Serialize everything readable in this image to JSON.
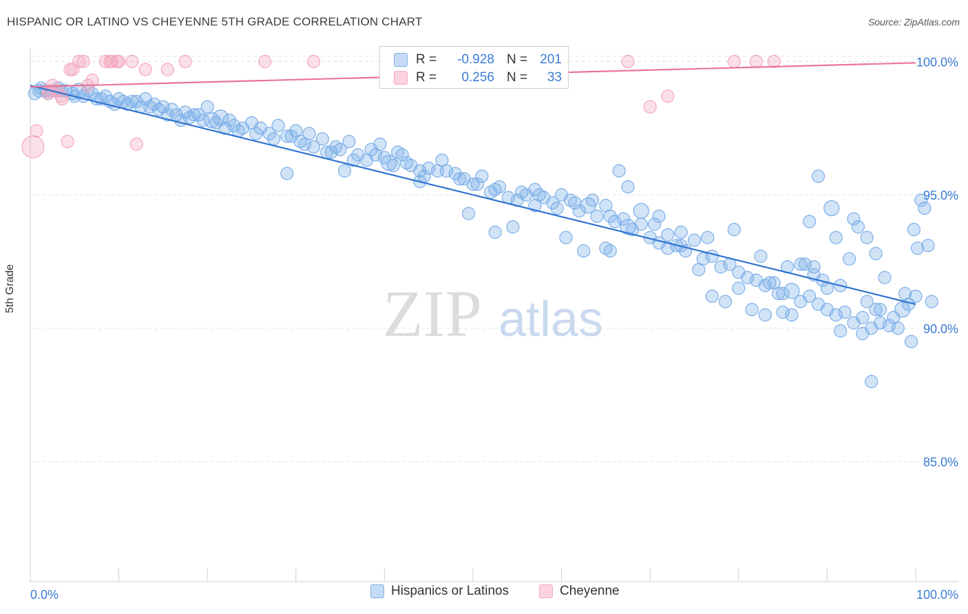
{
  "header": {
    "title": "HISPANIC OR LATINO VS CHEYENNE 5TH GRADE CORRELATION CHART",
    "source": "Source: ZipAtlas.com"
  },
  "watermark": {
    "zip": "ZIP",
    "atlas": "atlas"
  },
  "stats": {
    "rows": [
      {
        "r_label": "R =",
        "r_value": "-0.928",
        "n_label": "N =",
        "n_value": "201",
        "color": "#7baee8"
      },
      {
        "r_label": "R =",
        "r_value": "0.256",
        "n_label": "N =",
        "n_value": "33",
        "color": "#f4a7bd"
      }
    ]
  },
  "legend": {
    "items": [
      {
        "label": "Hispanics or Latinos",
        "color": "#7baee8"
      },
      {
        "label": "Cheyenne",
        "color": "#f4a7bd"
      }
    ]
  },
  "chart_data": {
    "type": "scatter",
    "title": "HISPANIC OR LATINO VS CHEYENNE 5TH GRADE CORRELATION CHART",
    "xlabel": "",
    "ylabel": "5th Grade",
    "xlim": [
      0,
      100
    ],
    "ylim": [
      80.5,
      100.5
    ],
    "x_tick_labels": [
      "0.0%",
      "100.0%"
    ],
    "y_ticks": [
      85,
      90,
      95,
      100
    ],
    "y_tick_labels": [
      "85.0%",
      "90.0%",
      "95.0%",
      "100.0%"
    ],
    "grid": true,
    "legend_position": "bottom",
    "series": [
      {
        "name": "Hispanics or Latinos",
        "color": "#7baee8",
        "line_color": "#2f73d1",
        "trend": {
          "x": [
            0,
            100
          ],
          "y": [
            99.1,
            90.9
          ]
        },
        "points": [
          [
            0.5,
            98.8
          ],
          [
            1.2,
            99.0
          ],
          [
            1.8,
            98.9
          ],
          [
            2.5,
            98.9
          ],
          [
            3.2,
            99.0
          ],
          [
            4.0,
            98.9
          ],
          [
            4.8,
            98.8
          ],
          [
            5.5,
            98.9
          ],
          [
            6.0,
            98.7
          ],
          [
            7.0,
            98.8
          ],
          [
            7.5,
            98.6
          ],
          [
            8.5,
            98.7
          ],
          [
            9.0,
            98.5
          ],
          [
            10.0,
            98.6
          ],
          [
            10.5,
            98.5
          ],
          [
            11.0,
            98.4
          ],
          [
            12.0,
            98.5
          ],
          [
            12.5,
            98.3
          ],
          [
            13.0,
            98.6
          ],
          [
            14.0,
            98.4
          ],
          [
            14.5,
            98.2
          ],
          [
            15.0,
            98.3
          ],
          [
            16.0,
            98.2
          ],
          [
            16.5,
            98.0
          ],
          [
            17.5,
            98.1
          ],
          [
            18.0,
            97.9
          ],
          [
            19.0,
            98.0
          ],
          [
            19.5,
            97.8
          ],
          [
            20.0,
            98.3
          ],
          [
            21.0,
            97.7
          ],
          [
            21.5,
            97.9
          ],
          [
            22.5,
            97.8
          ],
          [
            23.0,
            97.6
          ],
          [
            24.0,
            97.5
          ],
          [
            25.0,
            97.7
          ],
          [
            26.0,
            97.5
          ],
          [
            27.0,
            97.3
          ],
          [
            28.0,
            97.6
          ],
          [
            29.0,
            97.2
          ],
          [
            30.0,
            97.4
          ],
          [
            30.5,
            97.0
          ],
          [
            31.5,
            97.3
          ],
          [
            32.0,
            96.8
          ],
          [
            33.0,
            97.1
          ],
          [
            33.5,
            96.6
          ],
          [
            34.5,
            96.8
          ],
          [
            35.0,
            96.7
          ],
          [
            36.0,
            97.0
          ],
          [
            37.0,
            96.5
          ],
          [
            38.0,
            96.3
          ],
          [
            38.5,
            96.7
          ],
          [
            39.5,
            96.9
          ],
          [
            40.0,
            96.4
          ],
          [
            40.5,
            96.2
          ],
          [
            41.5,
            96.6
          ],
          [
            42.5,
            96.2
          ],
          [
            43.0,
            96.1
          ],
          [
            44.0,
            95.9
          ],
          [
            45.0,
            96.0
          ],
          [
            46.5,
            96.3
          ],
          [
            47.0,
            95.9
          ],
          [
            48.0,
            95.8
          ],
          [
            49.0,
            95.6
          ],
          [
            50.0,
            95.4
          ],
          [
            51.0,
            95.7
          ],
          [
            52.0,
            95.1
          ],
          [
            53.0,
            95.3
          ],
          [
            54.0,
            94.9
          ],
          [
            55.0,
            94.8
          ],
          [
            56.0,
            95.0
          ],
          [
            57.0,
            94.6
          ],
          [
            58.0,
            94.9
          ],
          [
            59.0,
            94.7
          ],
          [
            60.0,
            95.0
          ],
          [
            61.0,
            94.8
          ],
          [
            62.0,
            94.4
          ],
          [
            63.0,
            94.6
          ],
          [
            64.0,
            94.2
          ],
          [
            65.0,
            94.6
          ],
          [
            66.0,
            94.0
          ],
          [
            67.0,
            94.1
          ],
          [
            68.0,
            93.7
          ],
          [
            69.0,
            93.9
          ],
          [
            70.0,
            93.4
          ],
          [
            71.0,
            93.2
          ],
          [
            72.0,
            93.5
          ],
          [
            73.0,
            93.1
          ],
          [
            74.0,
            92.9
          ],
          [
            75.0,
            93.3
          ],
          [
            76.0,
            92.6
          ],
          [
            77.0,
            92.7
          ],
          [
            78.0,
            92.3
          ],
          [
            79.0,
            92.4
          ],
          [
            80.0,
            92.1
          ],
          [
            81.0,
            91.9
          ],
          [
            82.0,
            91.8
          ],
          [
            83.0,
            91.6
          ],
          [
            84.0,
            91.7
          ],
          [
            85.0,
            91.3
          ],
          [
            86.0,
            91.4
          ],
          [
            87.0,
            91.0
          ],
          [
            88.0,
            91.2
          ],
          [
            89.0,
            90.9
          ],
          [
            90.0,
            90.7
          ],
          [
            91.0,
            90.5
          ],
          [
            92.0,
            90.6
          ],
          [
            93.0,
            90.2
          ],
          [
            94.0,
            90.4
          ],
          [
            95.0,
            90.0
          ],
          [
            96.0,
            90.2
          ],
          [
            1.0,
            98.9
          ],
          [
            2.0,
            98.8
          ],
          [
            3.5,
            98.9
          ],
          [
            5.0,
            98.7
          ],
          [
            6.5,
            98.9
          ],
          [
            8.0,
            98.6
          ],
          [
            9.5,
            98.4
          ],
          [
            11.5,
            98.5
          ],
          [
            13.5,
            98.3
          ],
          [
            15.5,
            98.0
          ],
          [
            17.0,
            97.8
          ],
          [
            18.5,
            98.0
          ],
          [
            20.5,
            97.8
          ],
          [
            22.0,
            97.5
          ],
          [
            23.5,
            97.4
          ],
          [
            25.5,
            97.3
          ],
          [
            27.5,
            97.1
          ],
          [
            29.5,
            97.2
          ],
          [
            31.0,
            96.9
          ],
          [
            34.0,
            96.6
          ],
          [
            36.5,
            96.3
          ],
          [
            39.0,
            96.5
          ],
          [
            41.0,
            96.1
          ],
          [
            42.0,
            96.5
          ],
          [
            44.5,
            95.7
          ],
          [
            46.0,
            95.9
          ],
          [
            48.5,
            95.6
          ],
          [
            50.5,
            95.4
          ],
          [
            52.5,
            95.2
          ],
          [
            55.5,
            95.1
          ],
          [
            57.5,
            95.0
          ],
          [
            59.5,
            94.5
          ],
          [
            61.5,
            94.7
          ],
          [
            63.5,
            94.8
          ],
          [
            65.5,
            94.2
          ],
          [
            67.5,
            93.8
          ],
          [
            70.5,
            93.9
          ],
          [
            73.5,
            93.6
          ],
          [
            76.5,
            93.4
          ],
          [
            79.5,
            93.7
          ],
          [
            82.5,
            92.7
          ],
          [
            85.5,
            92.3
          ],
          [
            88.5,
            92.0
          ],
          [
            91.5,
            91.6
          ],
          [
            94.5,
            91.0
          ],
          [
            29.0,
            95.8
          ],
          [
            35.5,
            95.9
          ],
          [
            44.0,
            95.5
          ],
          [
            49.5,
            94.3
          ],
          [
            52.5,
            93.6
          ],
          [
            54.5,
            93.8
          ],
          [
            57.0,
            95.2
          ],
          [
            60.5,
            93.4
          ],
          [
            62.5,
            92.9
          ],
          [
            65.0,
            93.0
          ],
          [
            65.5,
            92.9
          ],
          [
            66.5,
            95.9
          ],
          [
            67.5,
            95.3
          ],
          [
            69.0,
            94.4
          ],
          [
            71.0,
            94.2
          ],
          [
            72.0,
            93.0
          ],
          [
            73.5,
            93.1
          ],
          [
            75.5,
            92.2
          ],
          [
            77.0,
            91.2
          ],
          [
            78.5,
            91.0
          ],
          [
            80.0,
            91.5
          ],
          [
            81.5,
            90.7
          ],
          [
            83.0,
            90.5
          ],
          [
            84.5,
            91.3
          ],
          [
            86.0,
            90.5
          ],
          [
            87.5,
            92.4
          ],
          [
            88.5,
            92.3
          ],
          [
            90.0,
            91.5
          ],
          [
            91.0,
            93.4
          ],
          [
            93.0,
            94.1
          ],
          [
            93.5,
            93.8
          ],
          [
            94.5,
            93.4
          ],
          [
            95.5,
            92.8
          ],
          [
            96.5,
            91.9
          ],
          [
            97.5,
            90.4
          ],
          [
            98.0,
            90.0
          ],
          [
            98.5,
            90.7
          ],
          [
            99.5,
            89.5
          ],
          [
            100.0,
            91.2
          ],
          [
            98.8,
            91.3
          ],
          [
            99.2,
            90.9
          ],
          [
            99.8,
            93.7
          ],
          [
            100.2,
            93.0
          ],
          [
            100.6,
            94.8
          ],
          [
            101.0,
            94.5
          ],
          [
            101.4,
            93.1
          ],
          [
            101.8,
            91.0
          ],
          [
            83.5,
            91.7
          ],
          [
            85.0,
            90.6
          ],
          [
            87.0,
            92.4
          ],
          [
            89.5,
            91.8
          ],
          [
            91.5,
            89.9
          ],
          [
            92.5,
            92.6
          ],
          [
            94.0,
            89.8
          ],
          [
            95.5,
            90.7
          ],
          [
            97.0,
            90.1
          ],
          [
            95.0,
            88.0
          ],
          [
            88.0,
            94.0
          ],
          [
            89.0,
            95.7
          ],
          [
            90.5,
            94.5
          ],
          [
            96.0,
            90.7
          ]
        ]
      },
      {
        "name": "Cheyenne",
        "color": "#f4a7bd",
        "line_color": "#e8749a",
        "trend": {
          "x": [
            0,
            100
          ],
          "y": [
            99.05,
            99.95
          ]
        },
        "points": [
          [
            0.3,
            96.8
          ],
          [
            0.7,
            97.4
          ],
          [
            2.0,
            98.8
          ],
          [
            2.2,
            98.9
          ],
          [
            2.5,
            99.1
          ],
          [
            3.0,
            98.9
          ],
          [
            3.5,
            98.7
          ],
          [
            3.6,
            98.6
          ],
          [
            4.2,
            97.0
          ],
          [
            4.5,
            99.7
          ],
          [
            4.8,
            99.7
          ],
          [
            5.5,
            100.0
          ],
          [
            6.0,
            100.0
          ],
          [
            6.5,
            99.1
          ],
          [
            7.0,
            99.3
          ],
          [
            8.5,
            100.0
          ],
          [
            9.0,
            100.0
          ],
          [
            9.2,
            100.0
          ],
          [
            9.8,
            100.0
          ],
          [
            10.0,
            100.0
          ],
          [
            11.5,
            100.0
          ],
          [
            12.0,
            96.9
          ],
          [
            13.0,
            99.7
          ],
          [
            15.5,
            99.7
          ],
          [
            17.5,
            100.0
          ],
          [
            26.5,
            100.0
          ],
          [
            32.0,
            100.0
          ],
          [
            67.5,
            100.0
          ],
          [
            70.0,
            98.3
          ],
          [
            72.0,
            98.7
          ],
          [
            79.5,
            100.0
          ],
          [
            82.0,
            100.0
          ],
          [
            84.0,
            100.0
          ]
        ]
      }
    ]
  }
}
